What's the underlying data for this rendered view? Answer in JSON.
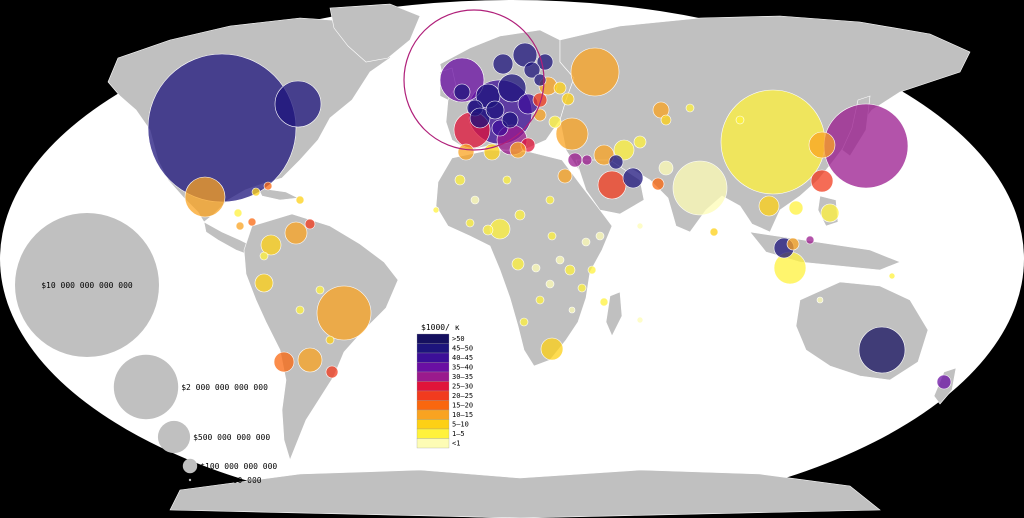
{
  "legend": {
    "title": "$1000/ ĸ",
    "classes": [
      {
        "label": ">50",
        "color": "#15105f"
      },
      {
        "label": "45–50",
        "color": "#1d147c"
      },
      {
        "label": "40–45",
        "color": "#3c0f98"
      },
      {
        "label": "35–40",
        "color": "#6a0fa3"
      },
      {
        "label": "30–35",
        "color": "#9a1a8d"
      },
      {
        "label": "25–30",
        "color": "#e0143a"
      },
      {
        "label": "20–25",
        "color": "#f13b1e"
      },
      {
        "label": "15–20",
        "color": "#f9670f"
      },
      {
        "label": "10–15",
        "color": "#f9a321"
      },
      {
        "label": "5–10",
        "color": "#fdd015"
      },
      {
        "label": "1–5",
        "color": "#fff23c"
      },
      {
        "label": "<1",
        "color": "#fdfcb5"
      }
    ]
  },
  "size_key": [
    {
      "label": "$10 000 000 000 000",
      "value": 10000000000000
    },
    {
      "label": "$2 000 000 000 000",
      "value": 2000000000000
    },
    {
      "label": "$500 000 000 000",
      "value": 500000000000
    },
    {
      "label": "$100 000 000 000",
      "value": 100000000000
    },
    {
      "label": "$2 000 000 000",
      "value": 2000000000
    }
  ],
  "colors": {
    "background": "#000000",
    "ocean": "#ffffff",
    "land": "#c0c0c0",
    "highlight_ring": "#b0207a"
  }
}
